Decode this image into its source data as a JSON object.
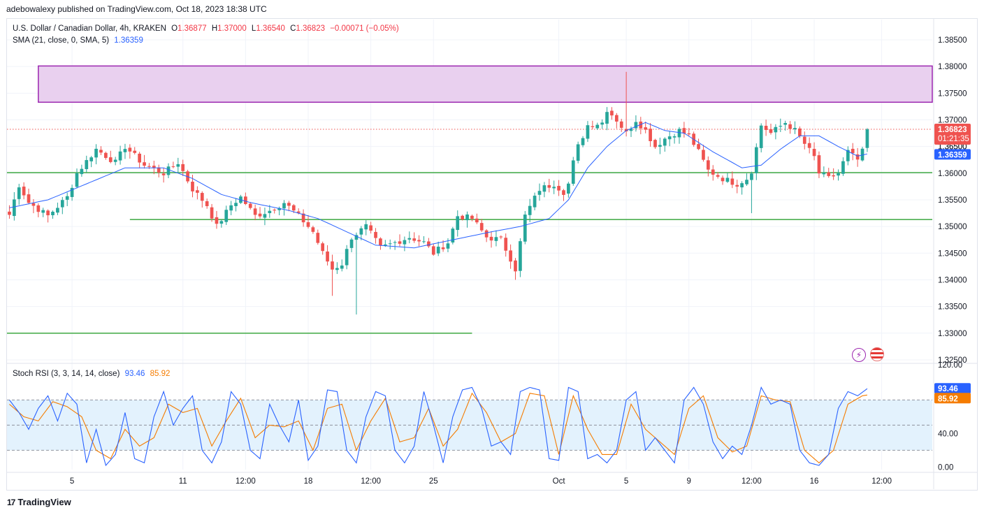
{
  "header": {
    "publisher": "adebowalexy published on TradingView.com, Oct 18, 2023 18:38 UTC"
  },
  "legend": {
    "symbol": "U.S. Dollar / Canadian Dollar, 4h, KRAKEN",
    "o_label": "O",
    "o_value": "1.36877",
    "h_label": "H",
    "h_value": "1.37000",
    "l_label": "L",
    "l_value": "1.36540",
    "c_label": "C",
    "c_value": "1.36823",
    "change": "−0.00071 (−0.05%)",
    "sma_label": "SMA (21, close, 0, SMA, 5)",
    "sma_value": "1.36359",
    "rsi_label": "Stoch RSI (3, 3, 14, 14, close)",
    "rsi_k": "93.46",
    "rsi_d": "85.92"
  },
  "price_badges": {
    "last": "1.36823",
    "countdown": "01:21:35",
    "sma": "1.36359",
    "hidden_partial": "1.36500",
    "rsi_k": "93.46",
    "rsi_d": "85.92"
  },
  "footer": {
    "brand": "TradingView"
  },
  "icons": [
    "lightning-icon",
    "us-flag-icon"
  ],
  "colors": {
    "up": "#26a69a",
    "down": "#ef5350",
    "sma": "#2962ff",
    "k_line": "#2962ff",
    "d_line": "#f57c00",
    "zone_fill": "#e9d0ef",
    "zone_border": "#9c27b0",
    "support": "#4caf50",
    "rsi_band": "#e3f2fd"
  },
  "chart_data": [
    {
      "type": "candlestick",
      "title": "U.S. Dollar / Canadian Dollar, 4h, KRAKEN",
      "y_ticks": [
        "1.38500",
        "1.38000",
        "1.37500",
        "1.37000",
        "1.36500",
        "1.36000",
        "1.35500",
        "1.35000",
        "1.34500",
        "1.34000",
        "1.33500",
        "1.33000",
        "1.32500"
      ],
      "y_tick_values": [
        1.385,
        1.38,
        1.375,
        1.37,
        1.365,
        1.36,
        1.355,
        1.35,
        1.345,
        1.34,
        1.335,
        1.33,
        1.325
      ],
      "ylim": [
        1.3246,
        1.3888
      ],
      "x_ticks": [
        "5",
        "11",
        "12:00",
        "18",
        "12:00",
        "25",
        "Oct",
        "5",
        "9",
        "12:00",
        "16",
        "12:00"
      ],
      "x_tick_index": [
        13,
        36,
        49,
        62,
        75,
        88,
        114,
        128,
        141,
        154,
        167,
        181
      ],
      "bars_total": 192,
      "resistance_zone": {
        "from": 1.3733,
        "to": 1.3801,
        "start_index": 6
      },
      "support_lines": [
        {
          "value": 1.3601,
          "start_index": 0
        },
        {
          "value": 1.3513,
          "start_index": 25
        },
        {
          "value": 1.33,
          "start_index": 0,
          "end_index": 96
        }
      ],
      "last_price_line": 1.36823,
      "anchors": [
        [
          0,
          1.3522
        ],
        [
          2,
          1.3578
        ],
        [
          4,
          1.3545
        ],
        [
          8,
          1.352
        ],
        [
          12,
          1.3555
        ],
        [
          14,
          1.36
        ],
        [
          18,
          1.3645
        ],
        [
          22,
          1.362
        ],
        [
          24,
          1.365
        ],
        [
          28,
          1.3615
        ],
        [
          32,
          1.36
        ],
        [
          35,
          1.362
        ],
        [
          38,
          1.357
        ],
        [
          41,
          1.354
        ],
        [
          43,
          1.35
        ],
        [
          46,
          1.354
        ],
        [
          48,
          1.3555
        ],
        [
          51,
          1.352
        ],
        [
          54,
          1.353
        ],
        [
          57,
          1.3545
        ],
        [
          60,
          1.352
        ],
        [
          63,
          1.349
        ],
        [
          65,
          1.345
        ],
        [
          67,
          1.342
        ],
        [
          69,
          1.343
        ],
        [
          71,
          1.348
        ],
        [
          74,
          1.35
        ],
        [
          77,
          1.346
        ],
        [
          80,
          1.347
        ],
        [
          83,
          1.348
        ],
        [
          86,
          1.347
        ],
        [
          88,
          1.345
        ],
        [
          91,
          1.347
        ],
        [
          93,
          1.352
        ],
        [
          96,
          1.3515
        ],
        [
          99,
          1.348
        ],
        [
          102,
          1.3475
        ],
        [
          104,
          1.344
        ],
        [
          105,
          1.342
        ],
        [
          107,
          1.352
        ],
        [
          110,
          1.357
        ],
        [
          113,
          1.358
        ],
        [
          115,
          1.3565
        ],
        [
          116,
          1.358
        ],
        [
          117,
          1.362
        ],
        [
          118,
          1.365
        ],
        [
          120,
          1.369
        ],
        [
          123,
          1.3695
        ],
        [
          124,
          1.372
        ],
        [
          126,
          1.37
        ],
        [
          128,
          1.3675
        ],
        [
          130,
          1.37
        ],
        [
          132,
          1.368
        ],
        [
          134,
          1.365
        ],
        [
          136,
          1.3665
        ],
        [
          139,
          1.368
        ],
        [
          141,
          1.367
        ],
        [
          143,
          1.364
        ],
        [
          145,
          1.3605
        ],
        [
          148,
          1.359
        ],
        [
          151,
          1.358
        ],
        [
          153,
          1.359
        ],
        [
          154,
          1.3605
        ],
        [
          156,
          1.369
        ],
        [
          158,
          1.3675
        ],
        [
          161,
          1.3695
        ],
        [
          163,
          1.368
        ],
        [
          165,
          1.3655
        ],
        [
          167,
          1.363
        ],
        [
          168,
          1.36
        ],
        [
          170,
          1.359
        ],
        [
          172,
          1.36
        ],
        [
          174,
          1.364
        ],
        [
          176,
          1.3625
        ],
        [
          177,
          1.364
        ],
        [
          178,
          1.3682
        ]
      ],
      "wick_extremes": [
        {
          "index": 128,
          "high": 1.379
        },
        {
          "index": 72,
          "low": 1.3335
        },
        {
          "index": 154,
          "low": 1.3525
        },
        {
          "index": 105,
          "low": 1.34
        },
        {
          "index": 67,
          "low": 1.337
        }
      ],
      "sma_anchors": [
        [
          0,
          1.3535
        ],
        [
          8,
          1.355
        ],
        [
          16,
          1.358
        ],
        [
          24,
          1.361
        ],
        [
          32,
          1.361
        ],
        [
          38,
          1.359
        ],
        [
          44,
          1.356
        ],
        [
          50,
          1.3545
        ],
        [
          58,
          1.353
        ],
        [
          64,
          1.3515
        ],
        [
          70,
          1.349
        ],
        [
          76,
          1.3465
        ],
        [
          84,
          1.346
        ],
        [
          92,
          1.3475
        ],
        [
          100,
          1.349
        ],
        [
          106,
          1.35
        ],
        [
          112,
          1.3515
        ],
        [
          116,
          1.355
        ],
        [
          120,
          1.361
        ],
        [
          124,
          1.365
        ],
        [
          128,
          1.368
        ],
        [
          132,
          1.3695
        ],
        [
          136,
          1.368
        ],
        [
          140,
          1.3675
        ],
        [
          146,
          1.364
        ],
        [
          152,
          1.361
        ],
        [
          156,
          1.3615
        ],
        [
          160,
          1.3645
        ],
        [
          164,
          1.367
        ],
        [
          168,
          1.367
        ],
        [
          172,
          1.365
        ],
        [
          176,
          1.3632
        ],
        [
          178,
          1.3636
        ]
      ]
    },
    {
      "type": "line",
      "title": "Stoch RSI (3, 3, 14, 14, close)",
      "y_ticks": [
        "120.00",
        "40.00",
        "0.00"
      ],
      "y_tick_values": [
        120,
        40,
        0
      ],
      "ylim": [
        -3,
        122
      ],
      "band": [
        20,
        80
      ],
      "dashed_levels": [
        20,
        50,
        80
      ],
      "series": [
        {
          "name": "K",
          "anchors": [
            [
              0,
              80
            ],
            [
              2,
              65
            ],
            [
              4,
              45
            ],
            [
              6,
              70
            ],
            [
              8,
              85
            ],
            [
              10,
              55
            ],
            [
              12,
              88
            ],
            [
              14,
              75
            ],
            [
              16,
              5
            ],
            [
              18,
              45
            ],
            [
              20,
              2
            ],
            [
              22,
              15
            ],
            [
              24,
              65
            ],
            [
              26,
              10
            ],
            [
              28,
              5
            ],
            [
              30,
              60
            ],
            [
              32,
              90
            ],
            [
              34,
              50
            ],
            [
              36,
              70
            ],
            [
              38,
              85
            ],
            [
              40,
              20
            ],
            [
              42,
              5
            ],
            [
              44,
              30
            ],
            [
              46,
              90
            ],
            [
              48,
              75
            ],
            [
              50,
              20
            ],
            [
              52,
              10
            ],
            [
              54,
              75
            ],
            [
              56,
              50
            ],
            [
              58,
              30
            ],
            [
              60,
              80
            ],
            [
              62,
              8
            ],
            [
              64,
              25
            ],
            [
              66,
              92
            ],
            [
              68,
              90
            ],
            [
              70,
              20
            ],
            [
              72,
              5
            ],
            [
              74,
              60
            ],
            [
              76,
              90
            ],
            [
              78,
              85
            ],
            [
              80,
              20
            ],
            [
              82,
              5
            ],
            [
              84,
              25
            ],
            [
              86,
              90
            ],
            [
              88,
              50
            ],
            [
              90,
              5
            ],
            [
              92,
              60
            ],
            [
              94,
              92
            ],
            [
              96,
              95
            ],
            [
              98,
              70
            ],
            [
              100,
              25
            ],
            [
              102,
              30
            ],
            [
              104,
              15
            ],
            [
              106,
              90
            ],
            [
              108,
              95
            ],
            [
              110,
              92
            ],
            [
              112,
              10
            ],
            [
              114,
              8
            ],
            [
              116,
              95
            ],
            [
              118,
              90
            ],
            [
              120,
              10
            ],
            [
              122,
              15
            ],
            [
              124,
              5
            ],
            [
              126,
              20
            ],
            [
              128,
              80
            ],
            [
              130,
              90
            ],
            [
              132,
              20
            ],
            [
              134,
              35
            ],
            [
              136,
              20
            ],
            [
              138,
              5
            ],
            [
              140,
              80
            ],
            [
              142,
              95
            ],
            [
              144,
              75
            ],
            [
              146,
              30
            ],
            [
              148,
              10
            ],
            [
              150,
              25
            ],
            [
              152,
              15
            ],
            [
              154,
              50
            ],
            [
              156,
              95
            ],
            [
              158,
              75
            ],
            [
              160,
              80
            ],
            [
              162,
              75
            ],
            [
              164,
              20
            ],
            [
              166,
              5
            ],
            [
              168,
              2
            ],
            [
              170,
              15
            ],
            [
              172,
              70
            ],
            [
              174,
              90
            ],
            [
              176,
              85
            ],
            [
              178,
              93.46
            ]
          ]
        },
        {
          "name": "D",
          "anchors": [
            [
              0,
              75
            ],
            [
              3,
              60
            ],
            [
              6,
              55
            ],
            [
              9,
              78
            ],
            [
              12,
              72
            ],
            [
              15,
              60
            ],
            [
              18,
              20
            ],
            [
              21,
              10
            ],
            [
              24,
              45
            ],
            [
              27,
              25
            ],
            [
              30,
              35
            ],
            [
              33,
              75
            ],
            [
              36,
              65
            ],
            [
              39,
              70
            ],
            [
              42,
              25
            ],
            [
              45,
              55
            ],
            [
              48,
              82
            ],
            [
              51,
              35
            ],
            [
              54,
              50
            ],
            [
              57,
              48
            ],
            [
              60,
              55
            ],
            [
              63,
              20
            ],
            [
              66,
              70
            ],
            [
              69,
              75
            ],
            [
              72,
              20
            ],
            [
              75,
              55
            ],
            [
              78,
              82
            ],
            [
              81,
              30
            ],
            [
              84,
              35
            ],
            [
              87,
              70
            ],
            [
              90,
              25
            ],
            [
              93,
              45
            ],
            [
              96,
              88
            ],
            [
              99,
              65
            ],
            [
              102,
              30
            ],
            [
              105,
              40
            ],
            [
              108,
              88
            ],
            [
              111,
              85
            ],
            [
              114,
              15
            ],
            [
              117,
              85
            ],
            [
              120,
              45
            ],
            [
              123,
              15
            ],
            [
              126,
              15
            ],
            [
              129,
              75
            ],
            [
              132,
              45
            ],
            [
              135,
              30
            ],
            [
              138,
              15
            ],
            [
              141,
              70
            ],
            [
              144,
              85
            ],
            [
              147,
              35
            ],
            [
              150,
              18
            ],
            [
              153,
              25
            ],
            [
              156,
              85
            ],
            [
              159,
              80
            ],
            [
              162,
              78
            ],
            [
              165,
              20
            ],
            [
              168,
              5
            ],
            [
              171,
              20
            ],
            [
              174,
              75
            ],
            [
              177,
              85
            ],
            [
              178,
              85.92
            ]
          ]
        }
      ]
    }
  ]
}
